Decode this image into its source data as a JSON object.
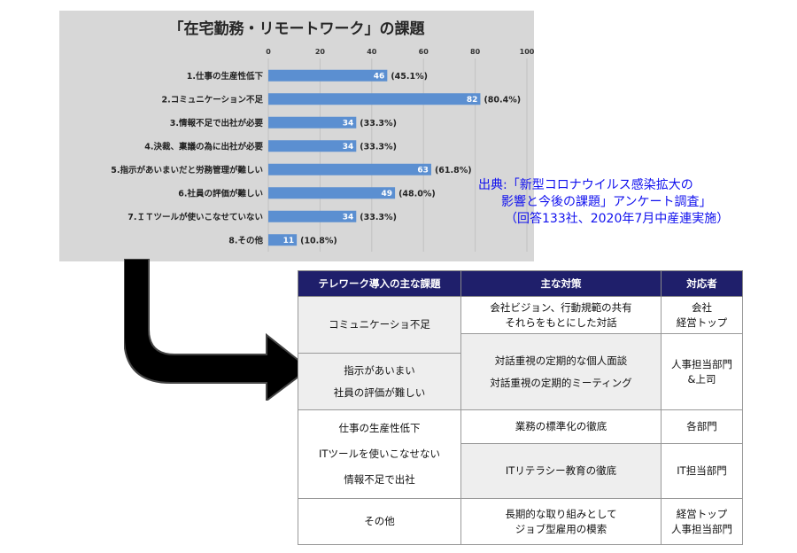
{
  "chart_data": {
    "type": "bar",
    "orientation": "horizontal",
    "title": "「在宅勤務・リモートワーク」の課題",
    "xlim": [
      0,
      100
    ],
    "ticks": [
      0,
      20,
      40,
      60,
      80,
      100
    ],
    "categories": [
      "1.仕事の生産性低下",
      "2.コミュニケーション不足",
      "3.情報不足で出社が必要",
      "4.決裁、稟議の為に出社が必要",
      "5.指示があいまいだと労務管理が難しい",
      "6.社員の評価が難しい",
      "7.ＩＴツールが使いこなせていない",
      "8.その他"
    ],
    "values": [
      46,
      82,
      34,
      34,
      63,
      49,
      34,
      11
    ],
    "value_labels": [
      "46",
      "82",
      "34",
      "34",
      "63",
      "49",
      "34",
      "11"
    ],
    "percent_labels": [
      "(45.1%)",
      "(80.4%)",
      "(33.3%)",
      "(33.3%)",
      "(61.8%)",
      "(48.0%)",
      "(33.3%)",
      "(10.8%)"
    ],
    "bar_color": "#5b8fd1",
    "grid": true,
    "legend": "none"
  },
  "source": {
    "line1": "出典:「新型コロナウイルス感染拡大の",
    "line2": "影響と今後の課題」アンケート調査」",
    "line3": "（回答133社、2020年7月中産連実施）"
  },
  "table": {
    "headers": [
      "テレワーク導入の主な課題",
      "主な対策",
      "対応者"
    ],
    "issue1": "コミュニケーショ不足",
    "issue2a": "指示があいまい",
    "issue2b": "社員の評価が難しい",
    "issue3a": "仕事の生産性低下",
    "issue3b": "ITツールを使いこなせない",
    "issue3c": "情報不足で出社",
    "issue4": "その他",
    "measure1a": "会社ビジョン、行動規範の共有",
    "measure1b": "それらをもとにした対話",
    "measure2a": "対話重視の定期的な個人面談",
    "measure2b": "対話重視の定期的ミーティング",
    "measure3": "業務の標準化の徹底",
    "measure4": "ITリテラシー教育の徹底",
    "measure5a": "長期的な取り組みとして",
    "measure5b": "ジョブ型雇用の模索",
    "owner1a": "会社",
    "owner1b": "経営トップ",
    "owner2a": "人事担当部門",
    "owner2b": "&上司",
    "owner3": "各部門",
    "owner4": "IT担当部門",
    "owner5a": "経営トップ",
    "owner5b": "人事担当部門"
  },
  "colors": {
    "table_header_bg": "#1f1f6b",
    "source_text": "#1010ee",
    "chart_bg": "#d7d7d7",
    "arrow": "#000000"
  }
}
